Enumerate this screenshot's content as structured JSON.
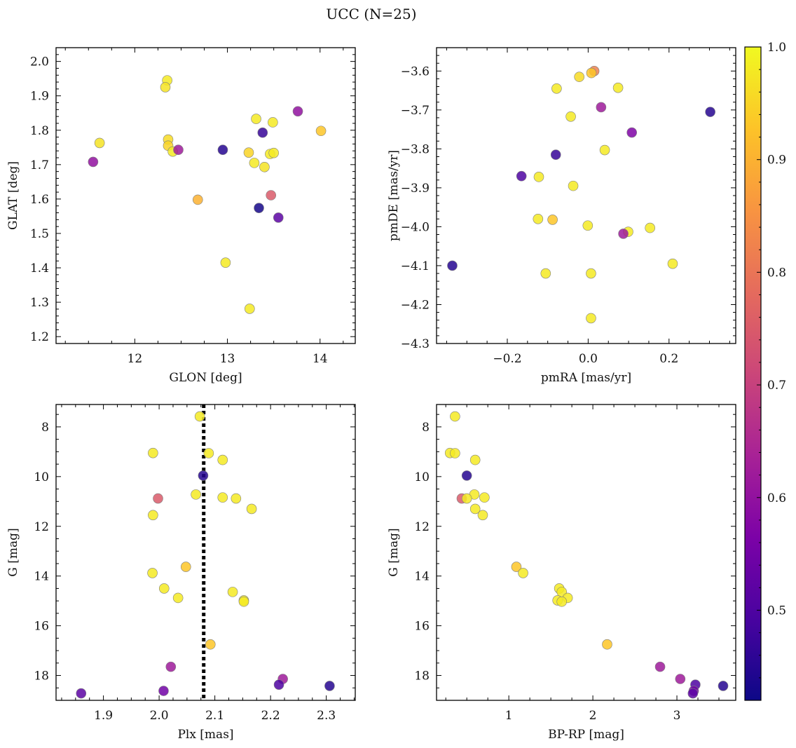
{
  "figure": {
    "title": "UCC (N=25)"
  },
  "colorbar": {
    "min": 0.42,
    "max": 1.0,
    "ticks": [
      0.5,
      0.6,
      0.7,
      0.8,
      0.9,
      1.0
    ],
    "tick_labels": [
      "0.5",
      "0.6",
      "0.7",
      "0.8",
      "0.9",
      "1.0"
    ],
    "colormap": "plasma"
  },
  "chart_data": [
    {
      "type": "scatter",
      "xlabel": "GLON [deg]",
      "ylabel": "GLAT [deg]",
      "xlim": [
        11.15,
        14.38
      ],
      "ylim": [
        1.18,
        2.04
      ],
      "xticks": [
        12,
        13,
        14
      ],
      "xtick_labels": [
        "12",
        "13",
        "14"
      ],
      "yticks": [
        1.2,
        1.3,
        1.4,
        1.5,
        1.6,
        1.7,
        1.8,
        1.9,
        2.0
      ],
      "ytick_labels": [
        "1.2",
        "1.3",
        "1.4",
        "1.5",
        "1.6",
        "1.7",
        "1.8",
        "1.9",
        "2.0"
      ],
      "y_inverted": false,
      "grid": false,
      "points": [
        {
          "x": 11.62,
          "y": 1.763,
          "c": 0.97
        },
        {
          "x": 11.55,
          "y": 1.708,
          "c": 0.6
        },
        {
          "x": 12.35,
          "y": 1.945,
          "c": 0.98
        },
        {
          "x": 12.33,
          "y": 1.925,
          "c": 0.97
        },
        {
          "x": 12.36,
          "y": 1.773,
          "c": 0.96
        },
        {
          "x": 12.36,
          "y": 1.755,
          "c": 0.95
        },
        {
          "x": 12.41,
          "y": 1.738,
          "c": 0.98
        },
        {
          "x": 12.47,
          "y": 1.743,
          "c": 0.62
        },
        {
          "x": 12.68,
          "y": 1.598,
          "c": 0.9
        },
        {
          "x": 12.95,
          "y": 1.743,
          "c": 0.45
        },
        {
          "x": 12.98,
          "y": 1.415,
          "c": 0.98
        },
        {
          "x": 13.23,
          "y": 1.735,
          "c": 0.95
        },
        {
          "x": 13.24,
          "y": 1.281,
          "c": 0.98
        },
        {
          "x": 13.29,
          "y": 1.705,
          "c": 0.98
        },
        {
          "x": 13.31,
          "y": 1.833,
          "c": 0.98
        },
        {
          "x": 13.34,
          "y": 1.574,
          "c": 0.43
        },
        {
          "x": 13.38,
          "y": 1.793,
          "c": 0.47
        },
        {
          "x": 13.4,
          "y": 1.693,
          "c": 0.97
        },
        {
          "x": 13.46,
          "y": 1.731,
          "c": 0.98
        },
        {
          "x": 13.47,
          "y": 1.611,
          "c": 0.75
        },
        {
          "x": 13.49,
          "y": 1.823,
          "c": 0.98
        },
        {
          "x": 13.5,
          "y": 1.734,
          "c": 0.98
        },
        {
          "x": 13.55,
          "y": 1.546,
          "c": 0.52
        },
        {
          "x": 13.76,
          "y": 1.855,
          "c": 0.6
        },
        {
          "x": 14.01,
          "y": 1.798,
          "c": 0.93
        }
      ]
    },
    {
      "type": "scatter",
      "xlabel": "pmRA [mas/yr]",
      "ylabel": "pmDE [mas/yr]",
      "xlim": [
        -0.375,
        0.365
      ],
      "ylim": [
        -4.3,
        -3.54
      ],
      "xticks": [
        -0.2,
        0.0,
        0.2
      ],
      "xtick_labels": [
        "−0.2",
        "0.0",
        "0.2"
      ],
      "yticks": [
        -4.3,
        -4.2,
        -4.1,
        -4.0,
        -3.9,
        -3.8,
        -3.7,
        -3.6
      ],
      "ytick_labels": [
        "−4.3",
        "−4.2",
        "−4.1",
        "−4.0",
        "−3.9",
        "−3.8",
        "−3.7",
        "−3.6"
      ],
      "y_inverted": false,
      "grid": false,
      "points": [
        {
          "x": 0.015,
          "y": -3.6,
          "c": 0.82
        },
        {
          "x": 0.008,
          "y": -3.605,
          "c": 0.93
        },
        {
          "x": -0.022,
          "y": -3.615,
          "c": 0.96
        },
        {
          "x": -0.078,
          "y": -3.645,
          "c": 0.98
        },
        {
          "x": 0.074,
          "y": -3.643,
          "c": 0.98
        },
        {
          "x": 0.032,
          "y": -3.693,
          "c": 0.62
        },
        {
          "x": 0.302,
          "y": -3.705,
          "c": 0.45
        },
        {
          "x": -0.043,
          "y": -3.717,
          "c": 0.98
        },
        {
          "x": 0.108,
          "y": -3.758,
          "c": 0.57
        },
        {
          "x": 0.041,
          "y": -3.803,
          "c": 0.98
        },
        {
          "x": -0.08,
          "y": -3.815,
          "c": 0.47
        },
        {
          "x": -0.165,
          "y": -3.87,
          "c": 0.5
        },
        {
          "x": -0.122,
          "y": -3.872,
          "c": 0.98
        },
        {
          "x": -0.037,
          "y": -3.895,
          "c": 0.98
        },
        {
          "x": -0.124,
          "y": -3.98,
          "c": 0.98
        },
        {
          "x": -0.088,
          "y": -3.982,
          "c": 0.93
        },
        {
          "x": -0.001,
          "y": -3.997,
          "c": 0.98
        },
        {
          "x": 0.153,
          "y": -4.003,
          "c": 0.98
        },
        {
          "x": 0.099,
          "y": -4.013,
          "c": 0.98
        },
        {
          "x": 0.087,
          "y": -4.018,
          "c": 0.62
        },
        {
          "x": -0.336,
          "y": -4.1,
          "c": 0.45
        },
        {
          "x": 0.209,
          "y": -4.095,
          "c": 0.98
        },
        {
          "x": -0.105,
          "y": -4.12,
          "c": 0.98
        },
        {
          "x": 0.007,
          "y": -4.12,
          "c": 0.98
        },
        {
          "x": 0.007,
          "y": -4.235,
          "c": 0.98
        }
      ]
    },
    {
      "type": "scatter",
      "xlabel": "Plx [mas]",
      "ylabel": "G [mag]",
      "xlim": [
        1.815,
        2.352
      ],
      "ylim": [
        7.1,
        19.0
      ],
      "xticks": [
        1.9,
        2.0,
        2.1,
        2.2,
        2.3
      ],
      "xtick_labels": [
        "1.9",
        "2.0",
        "2.1",
        "2.2",
        "2.3"
      ],
      "yticks": [
        8,
        10,
        12,
        14,
        16,
        18
      ],
      "ytick_labels": [
        "8",
        "10",
        "12",
        "14",
        "16",
        "18"
      ],
      "y_inverted": true,
      "grid": false,
      "vline": {
        "x": 2.08,
        "style": "dotted",
        "color": "#000000"
      },
      "points": [
        {
          "x": 2.073,
          "y": 7.58,
          "c": 0.98
        },
        {
          "x": 1.989,
          "y": 9.05,
          "c": 0.98
        },
        {
          "x": 2.089,
          "y": 9.06,
          "c": 0.98
        },
        {
          "x": 2.114,
          "y": 9.33,
          "c": 0.98
        },
        {
          "x": 2.079,
          "y": 9.96,
          "c": 0.45
        },
        {
          "x": 2.066,
          "y": 10.72,
          "c": 0.98
        },
        {
          "x": 2.114,
          "y": 10.84,
          "c": 0.98
        },
        {
          "x": 2.138,
          "y": 10.88,
          "c": 0.98
        },
        {
          "x": 1.998,
          "y": 10.88,
          "c": 0.75
        },
        {
          "x": 2.166,
          "y": 11.3,
          "c": 0.98
        },
        {
          "x": 1.989,
          "y": 11.55,
          "c": 0.98
        },
        {
          "x": 2.048,
          "y": 13.63,
          "c": 0.93
        },
        {
          "x": 1.988,
          "y": 13.88,
          "c": 0.98
        },
        {
          "x": 2.009,
          "y": 14.5,
          "c": 0.98
        },
        {
          "x": 2.132,
          "y": 14.64,
          "c": 0.98
        },
        {
          "x": 2.034,
          "y": 14.88,
          "c": 0.98
        },
        {
          "x": 2.152,
          "y": 14.98,
          "c": 0.98
        },
        {
          "x": 2.152,
          "y": 15.03,
          "c": 0.98
        },
        {
          "x": 2.092,
          "y": 16.75,
          "c": 0.93
        },
        {
          "x": 2.021,
          "y": 17.65,
          "c": 0.62
        },
        {
          "x": 2.222,
          "y": 18.14,
          "c": 0.62
        },
        {
          "x": 2.215,
          "y": 18.37,
          "c": 0.5
        },
        {
          "x": 2.306,
          "y": 18.42,
          "c": 0.45
        },
        {
          "x": 2.008,
          "y": 18.62,
          "c": 0.55
        },
        {
          "x": 1.86,
          "y": 18.72,
          "c": 0.52
        }
      ]
    },
    {
      "type": "scatter",
      "xlabel": "BP-RP [mag]",
      "ylabel": "G [mag]",
      "xlim": [
        0.14,
        3.7
      ],
      "ylim": [
        7.1,
        19.0
      ],
      "xticks": [
        1,
        2,
        3
      ],
      "xtick_labels": [
        "1",
        "2",
        "3"
      ],
      "yticks": [
        8,
        10,
        12,
        14,
        16,
        18
      ],
      "ytick_labels": [
        "8",
        "10",
        "12",
        "14",
        "16",
        "18"
      ],
      "y_inverted": true,
      "grid": false,
      "points": [
        {
          "x": 0.36,
          "y": 7.58,
          "c": 0.98
        },
        {
          "x": 0.3,
          "y": 9.05,
          "c": 0.98
        },
        {
          "x": 0.36,
          "y": 9.06,
          "c": 0.98
        },
        {
          "x": 0.6,
          "y": 9.33,
          "c": 0.98
        },
        {
          "x": 0.5,
          "y": 9.96,
          "c": 0.45
        },
        {
          "x": 0.59,
          "y": 10.72,
          "c": 0.98
        },
        {
          "x": 0.71,
          "y": 10.84,
          "c": 0.98
        },
        {
          "x": 0.44,
          "y": 10.88,
          "c": 0.75
        },
        {
          "x": 0.5,
          "y": 10.88,
          "c": 0.98
        },
        {
          "x": 0.6,
          "y": 11.3,
          "c": 0.98
        },
        {
          "x": 0.69,
          "y": 11.55,
          "c": 0.98
        },
        {
          "x": 1.09,
          "y": 13.63,
          "c": 0.93
        },
        {
          "x": 1.17,
          "y": 13.88,
          "c": 0.98
        },
        {
          "x": 1.6,
          "y": 14.5,
          "c": 0.98
        },
        {
          "x": 1.63,
          "y": 14.64,
          "c": 0.98
        },
        {
          "x": 1.7,
          "y": 14.88,
          "c": 0.98
        },
        {
          "x": 1.58,
          "y": 14.98,
          "c": 0.98
        },
        {
          "x": 1.63,
          "y": 15.03,
          "c": 0.98
        },
        {
          "x": 2.17,
          "y": 16.75,
          "c": 0.93
        },
        {
          "x": 2.8,
          "y": 17.65,
          "c": 0.62
        },
        {
          "x": 3.04,
          "y": 18.14,
          "c": 0.62
        },
        {
          "x": 3.22,
          "y": 18.37,
          "c": 0.5
        },
        {
          "x": 3.55,
          "y": 18.42,
          "c": 0.45
        },
        {
          "x": 3.2,
          "y": 18.62,
          "c": 0.55
        },
        {
          "x": 3.19,
          "y": 18.72,
          "c": 0.52
        }
      ]
    }
  ]
}
